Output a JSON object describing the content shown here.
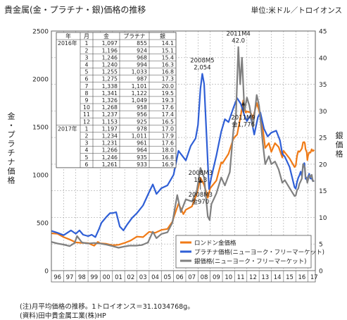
{
  "title": "貴金属(金・プラチナ・銀)価格の推移",
  "unit_note": "単位:米ドル／トロイオンス",
  "left_axis_label": "金・プラチナ価格",
  "right_axis_label": "銀価格",
  "footnotes": [
    "(注)月平均価格の推移。1トロイオンス＝31.1034768g。",
    "(資料)田中貴金属工業(株)HP"
  ],
  "colors": {
    "gold": "#f07a16",
    "platinum": "#2f5fd6",
    "silver": "#808080",
    "grid": "#a8a8a8",
    "frame": "#606060"
  },
  "annotations": [
    {
      "text": "2011M4\n42.0",
      "x": 2011.3,
      "y": 42.0,
      "axis": "right",
      "type": "label-above"
    },
    {
      "text": "2008M5\n2,054",
      "x": 2008.35,
      "y": 2054,
      "axis": "left",
      "type": "label-above"
    },
    {
      "text": "2008M3\n19.3",
      "x": 2008.2,
      "y": 19.3,
      "axis": "right",
      "type": "label-below"
    },
    {
      "text": "2011M9\n金1,776",
      "x": 2011.7,
      "y": 1776,
      "axis": "left",
      "type": "arrow-up"
    },
    {
      "text": "2008M3\n金970",
      "x": 2008.2,
      "y": 970,
      "axis": "left",
      "type": "arrow-up"
    }
  ],
  "table": {
    "headers": [
      "年",
      "月",
      "金",
      "プラチナ",
      "銀"
    ],
    "year_labels": [
      "2016年",
      "2017年"
    ],
    "rows": [
      [
        "2016年",
        "1",
        "1,097",
        "855",
        "14.1"
      ],
      [
        "",
        "2",
        "1,196",
        "924",
        "15.1"
      ],
      [
        "",
        "3",
        "1,246",
        "968",
        "15.4"
      ],
      [
        "",
        "4",
        "1,240",
        "994",
        "16.3"
      ],
      [
        "",
        "5",
        "1,255",
        "1,033",
        "16.8"
      ],
      [
        "",
        "6",
        "1,275",
        "987",
        "17.3"
      ],
      [
        "",
        "7",
        "1,338",
        "1,101",
        "20.0"
      ],
      [
        "",
        "8",
        "1,341",
        "1,122",
        "19.5"
      ],
      [
        "",
        "9",
        "1,326",
        "1,049",
        "19.3"
      ],
      [
        "",
        "10",
        "1,268",
        "958",
        "17.6"
      ],
      [
        "",
        "11",
        "1,237",
        "956",
        "17.4"
      ],
      [
        "",
        "12",
        "1,153",
        "925",
        "16.5"
      ],
      [
        "2017年",
        "1",
        "1,197",
        "978",
        "17.0"
      ],
      [
        "",
        "2",
        "1,234",
        "1,011",
        "17.9"
      ],
      [
        "",
        "3",
        "1,231",
        "961",
        "17.6"
      ],
      [
        "",
        "4",
        "1,266",
        "964",
        "18.0"
      ],
      [
        "",
        "5",
        "1,246",
        "935",
        "16.8"
      ],
      [
        "",
        "6",
        "1,261",
        "933",
        "16.9"
      ]
    ]
  },
  "chart_data": {
    "type": "line",
    "title": "貴金属(金・プラチナ・銀)価格の推移",
    "ylabel": "金・プラチナ価格",
    "y2label": "銀価格",
    "ylim": [
      0,
      2500
    ],
    "y2lim": [
      0,
      45
    ],
    "xlim": [
      1996,
      2017.6
    ],
    "yticks": [
      0,
      500,
      1000,
      1500,
      2000,
      2500
    ],
    "y2ticks": [
      0,
      5,
      10,
      15,
      20,
      25,
      30,
      35,
      40,
      45
    ],
    "xtick_labels": [
      "96",
      "97",
      "98",
      "99",
      "00",
      "01",
      "02",
      "03",
      "04",
      "05",
      "06",
      "07",
      "08",
      "09",
      "10",
      "11",
      "12",
      "13",
      "14",
      "15",
      "16",
      "17"
    ],
    "grid": true,
    "legend_position": "bottom-right",
    "series": [
      {
        "name": "ロンドン金価格",
        "axis": "left",
        "color": "#f07a16",
        "points": [
          [
            1996.0,
            390
          ],
          [
            1996.5,
            385
          ],
          [
            1997.0,
            350
          ],
          [
            1997.5,
            325
          ],
          [
            1998.0,
            295
          ],
          [
            1998.5,
            290
          ],
          [
            1999.0,
            288
          ],
          [
            1999.5,
            260
          ],
          [
            1999.8,
            300
          ],
          [
            2000.0,
            285
          ],
          [
            2000.5,
            280
          ],
          [
            2001.0,
            265
          ],
          [
            2001.5,
            270
          ],
          [
            2002.0,
            290
          ],
          [
            2002.5,
            315
          ],
          [
            2003.0,
            355
          ],
          [
            2003.5,
            350
          ],
          [
            2004.0,
            405
          ],
          [
            2004.5,
            395
          ],
          [
            2005.0,
            425
          ],
          [
            2005.5,
            435
          ],
          [
            2005.9,
            510
          ],
          [
            2006.0,
            550
          ],
          [
            2006.4,
            700
          ],
          [
            2006.8,
            590
          ],
          [
            2007.0,
            635
          ],
          [
            2007.5,
            670
          ],
          [
            2007.9,
            800
          ],
          [
            2008.2,
            970
          ],
          [
            2008.5,
            895
          ],
          [
            2008.8,
            760
          ],
          [
            2009.0,
            860
          ],
          [
            2009.5,
            940
          ],
          [
            2009.9,
            1130
          ],
          [
            2010.0,
            1120
          ],
          [
            2010.5,
            1220
          ],
          [
            2010.9,
            1380
          ],
          [
            2011.2,
            1420
          ],
          [
            2011.5,
            1620
          ],
          [
            2011.7,
            1776
          ],
          [
            2011.9,
            1650
          ],
          [
            2012.0,
            1660
          ],
          [
            2012.3,
            1650
          ],
          [
            2012.5,
            1590
          ],
          [
            2012.8,
            1750
          ],
          [
            2013.0,
            1670
          ],
          [
            2013.3,
            1480
          ],
          [
            2013.5,
            1280
          ],
          [
            2013.8,
            1330
          ],
          [
            2014.0,
            1240
          ],
          [
            2014.3,
            1330
          ],
          [
            2014.6,
            1290
          ],
          [
            2014.9,
            1180
          ],
          [
            2015.0,
            1250
          ],
          [
            2015.5,
            1170
          ],
          [
            2015.9,
            1080
          ],
          [
            2016.0,
            1097
          ],
          [
            2016.1,
            1196
          ],
          [
            2016.2,
            1246
          ],
          [
            2016.3,
            1240
          ],
          [
            2016.4,
            1255
          ],
          [
            2016.5,
            1275
          ],
          [
            2016.6,
            1338
          ],
          [
            2016.7,
            1341
          ],
          [
            2016.75,
            1326
          ],
          [
            2016.8,
            1268
          ],
          [
            2016.9,
            1237
          ],
          [
            2016.95,
            1153
          ],
          [
            2017.0,
            1197
          ],
          [
            2017.1,
            1234
          ],
          [
            2017.2,
            1231
          ],
          [
            2017.3,
            1266
          ],
          [
            2017.4,
            1246
          ],
          [
            2017.5,
            1261
          ]
        ]
      },
      {
        "name": "プラチナ価格(ニューヨーク・フリーマーケット)",
        "axis": "left",
        "color": "#2f5fd6",
        "points": [
          [
            1996.0,
            415
          ],
          [
            1996.5,
            395
          ],
          [
            1997.0,
            370
          ],
          [
            1997.3,
            395
          ],
          [
            1997.6,
            420
          ],
          [
            1998.0,
            385
          ],
          [
            1998.3,
            420
          ],
          [
            1998.6,
            375
          ],
          [
            1999.0,
            360
          ],
          [
            1999.3,
            375
          ],
          [
            1999.6,
            350
          ],
          [
            1999.9,
            435
          ],
          [
            2000.1,
            500
          ],
          [
            2000.5,
            560
          ],
          [
            2000.8,
            600
          ],
          [
            2001.0,
            600
          ],
          [
            2001.3,
            610
          ],
          [
            2001.6,
            460
          ],
          [
            2001.9,
            420
          ],
          [
            2002.2,
            480
          ],
          [
            2002.6,
            550
          ],
          [
            2003.0,
            600
          ],
          [
            2003.5,
            680
          ],
          [
            2004.0,
            820
          ],
          [
            2004.3,
            900
          ],
          [
            2004.6,
            800
          ],
          [
            2005.0,
            860
          ],
          [
            2005.5,
            890
          ],
          [
            2006.0,
            1000
          ],
          [
            2006.4,
            1250
          ],
          [
            2006.7,
            1200
          ],
          [
            2007.0,
            1150
          ],
          [
            2007.4,
            1300
          ],
          [
            2007.8,
            1380
          ],
          [
            2008.0,
            1520
          ],
          [
            2008.2,
            1900
          ],
          [
            2008.35,
            2054
          ],
          [
            2008.5,
            1950
          ],
          [
            2008.7,
            1400
          ],
          [
            2008.9,
            850
          ],
          [
            2009.1,
            980
          ],
          [
            2009.5,
            1200
          ],
          [
            2009.9,
            1450
          ],
          [
            2010.2,
            1580
          ],
          [
            2010.5,
            1550
          ],
          [
            2010.9,
            1700
          ],
          [
            2011.2,
            1800
          ],
          [
            2011.5,
            1740
          ],
          [
            2011.8,
            1620
          ],
          [
            2012.0,
            1560
          ],
          [
            2012.3,
            1620
          ],
          [
            2012.6,
            1420
          ],
          [
            2012.9,
            1600
          ],
          [
            2013.1,
            1650
          ],
          [
            2013.4,
            1480
          ],
          [
            2013.7,
            1400
          ],
          [
            2014.0,
            1440
          ],
          [
            2014.4,
            1460
          ],
          [
            2014.7,
            1360
          ],
          [
            2014.9,
            1220
          ],
          [
            2015.1,
            1190
          ],
          [
            2015.5,
            1080
          ],
          [
            2015.9,
            870
          ],
          [
            2016.0,
            855
          ],
          [
            2016.1,
            924
          ],
          [
            2016.2,
            968
          ],
          [
            2016.3,
            994
          ],
          [
            2016.4,
            1033
          ],
          [
            2016.5,
            987
          ],
          [
            2016.6,
            1101
          ],
          [
            2016.7,
            1122
          ],
          [
            2016.75,
            1049
          ],
          [
            2016.8,
            958
          ],
          [
            2016.9,
            956
          ],
          [
            2016.95,
            925
          ],
          [
            2017.0,
            978
          ],
          [
            2017.1,
            1011
          ],
          [
            2017.2,
            961
          ],
          [
            2017.3,
            964
          ],
          [
            2017.4,
            935
          ],
          [
            2017.5,
            933
          ]
        ]
      },
      {
        "name": "銀価格(ニューヨーク・フリーマーケット)",
        "axis": "right",
        "color": "#808080",
        "points": [
          [
            1996.0,
            5.4
          ],
          [
            1996.5,
            5.1
          ],
          [
            1997.0,
            4.9
          ],
          [
            1997.5,
            4.6
          ],
          [
            1997.9,
            5.2
          ],
          [
            1998.1,
            6.5
          ],
          [
            1998.5,
            5.3
          ],
          [
            1999.0,
            5.1
          ],
          [
            1999.5,
            5.2
          ],
          [
            2000.0,
            5.1
          ],
          [
            2000.5,
            4.9
          ],
          [
            2001.0,
            4.6
          ],
          [
            2001.5,
            4.3
          ],
          [
            2001.9,
            4.5
          ],
          [
            2002.4,
            4.7
          ],
          [
            2002.9,
            4.7
          ],
          [
            2003.4,
            4.8
          ],
          [
            2003.9,
            5.3
          ],
          [
            2004.3,
            7.3
          ],
          [
            2004.6,
            6.1
          ],
          [
            2005.0,
            6.9
          ],
          [
            2005.5,
            7.2
          ],
          [
            2005.9,
            9.0
          ],
          [
            2006.3,
            14.2
          ],
          [
            2006.6,
            11.0
          ],
          [
            2007.0,
            13.4
          ],
          [
            2007.5,
            13.0
          ],
          [
            2007.9,
            15.0
          ],
          [
            2008.2,
            19.3
          ],
          [
            2008.5,
            17.5
          ],
          [
            2008.8,
            10.2
          ],
          [
            2008.95,
            9.5
          ],
          [
            2009.1,
            12.5
          ],
          [
            2009.5,
            14.5
          ],
          [
            2009.9,
            17.5
          ],
          [
            2010.2,
            16.0
          ],
          [
            2010.6,
            18.5
          ],
          [
            2010.9,
            26.5
          ],
          [
            2011.1,
            29.0
          ],
          [
            2011.3,
            42.0
          ],
          [
            2011.45,
            35.0
          ],
          [
            2011.6,
            40.0
          ],
          [
            2011.8,
            30.0
          ],
          [
            2012.0,
            32.5
          ],
          [
            2012.2,
            31.0
          ],
          [
            2012.5,
            27.0
          ],
          [
            2012.8,
            33.0
          ],
          [
            2013.0,
            31.0
          ],
          [
            2013.3,
            24.0
          ],
          [
            2013.5,
            20.0
          ],
          [
            2013.8,
            21.5
          ],
          [
            2014.0,
            20.0
          ],
          [
            2014.3,
            20.5
          ],
          [
            2014.6,
            19.0
          ],
          [
            2014.9,
            16.5
          ],
          [
            2015.1,
            17.0
          ],
          [
            2015.5,
            15.5
          ],
          [
            2015.9,
            14.0
          ],
          [
            2016.0,
            14.1
          ],
          [
            2016.1,
            15.1
          ],
          [
            2016.2,
            15.4
          ],
          [
            2016.3,
            16.3
          ],
          [
            2016.4,
            16.8
          ],
          [
            2016.5,
            17.3
          ],
          [
            2016.6,
            20.0
          ],
          [
            2016.7,
            19.5
          ],
          [
            2016.75,
            19.3
          ],
          [
            2016.8,
            17.6
          ],
          [
            2016.9,
            17.4
          ],
          [
            2016.95,
            16.5
          ],
          [
            2017.0,
            17.0
          ],
          [
            2017.1,
            17.9
          ],
          [
            2017.2,
            17.6
          ],
          [
            2017.3,
            18.0
          ],
          [
            2017.4,
            16.8
          ],
          [
            2017.5,
            16.9
          ]
        ]
      }
    ]
  }
}
